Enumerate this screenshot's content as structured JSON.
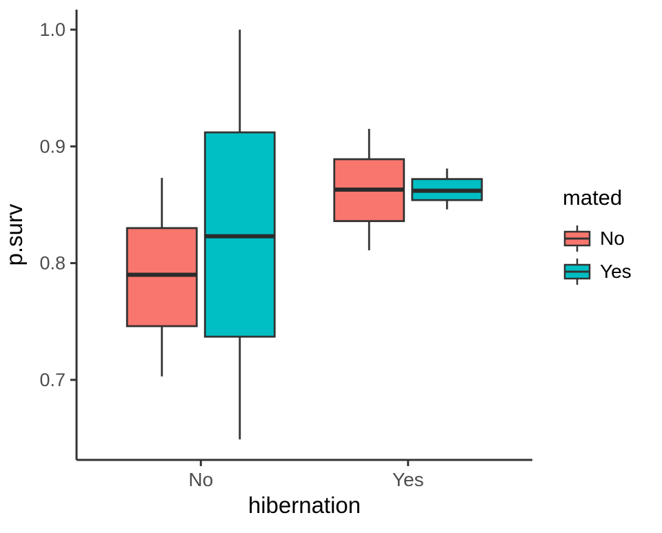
{
  "chart_data": {
    "type": "boxplot",
    "title": "",
    "xlabel": "hibernation",
    "ylabel": "p.surv",
    "categories": [
      "No",
      "Yes"
    ],
    "y_ticks": [
      {
        "label": "0.7",
        "value": 0.7
      },
      {
        "label": "0.8",
        "value": 0.8
      },
      {
        "label": "0.9",
        "value": 0.9
      },
      {
        "label": "1.0",
        "value": 1.0
      }
    ],
    "ylim": [
      0.63,
      1.02
    ],
    "grid": false,
    "legend": {
      "title": "mated",
      "position": "right",
      "entries": [
        {
          "label": "No",
          "color": "#F8766D"
        },
        {
          "label": "Yes",
          "color": "#00BFC4"
        }
      ]
    },
    "series": [
      {
        "name": "No",
        "color": "#F8766D",
        "boxes": [
          {
            "category": "No",
            "whisker_low": 0.703,
            "q1": 0.746,
            "median": 0.79,
            "q3": 0.83,
            "whisker_high": 0.873
          },
          {
            "category": "Yes",
            "whisker_low": 0.811,
            "q1": 0.836,
            "median": 0.863,
            "q3": 0.889,
            "whisker_high": 0.915
          }
        ]
      },
      {
        "name": "Yes",
        "color": "#00BFC4",
        "boxes": [
          {
            "category": "No",
            "whisker_low": 0.649,
            "q1": 0.737,
            "median": 0.823,
            "q3": 0.912,
            "whisker_high": 1.0
          },
          {
            "category": "Yes",
            "whisker_low": 0.846,
            "q1": 0.854,
            "median": 0.862,
            "q3": 0.872,
            "whisker_high": 0.881
          }
        ]
      }
    ],
    "style": {
      "box_outline": "#333333",
      "median_color": "#2b2b2b",
      "axis_color": "#333333",
      "tick_label_color": "#4d4d4d",
      "background": "#ffffff"
    }
  }
}
